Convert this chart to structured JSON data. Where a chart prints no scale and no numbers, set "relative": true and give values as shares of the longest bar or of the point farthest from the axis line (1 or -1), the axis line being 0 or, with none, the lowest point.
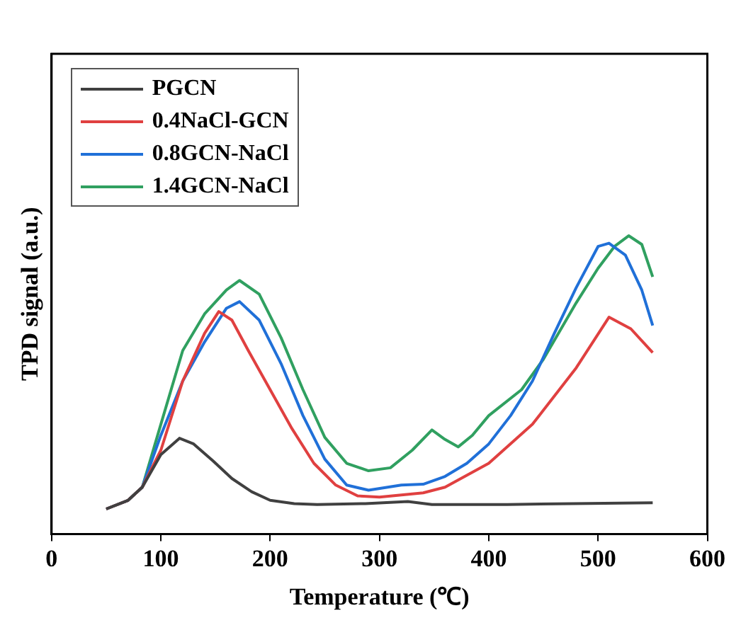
{
  "chart_data": {
    "type": "line",
    "xlabel": "Temperature (℃)",
    "ylabel": "TPD signal (a.u.)",
    "relative": true,
    "xlim": [
      0,
      600
    ],
    "xticks": [
      0,
      100,
      200,
      300,
      400,
      500,
      600
    ],
    "grid": false,
    "legend": "top left",
    "marker": "none",
    "line_style": "solid",
    "series": [
      {
        "name": "PGCN",
        "color": "#404040",
        "x": [
          50,
          70,
          83,
          100,
          117,
          130,
          148,
          165,
          183,
          200,
          222,
          243,
          287,
          326,
          348,
          417,
          550
        ],
        "values": [
          0.084,
          0.113,
          0.157,
          0.266,
          0.321,
          0.302,
          0.244,
          0.186,
          0.142,
          0.113,
          0.102,
          0.099,
          0.102,
          0.109,
          0.099,
          0.099,
          0.105
        ]
      },
      {
        "name": "0.4NaCl-GCN",
        "color": "#e04040",
        "x": [
          50,
          70,
          83,
          100,
          120,
          140,
          153,
          165,
          180,
          200,
          220,
          240,
          260,
          280,
          300,
          340,
          360,
          400,
          440,
          480,
          510,
          530,
          550
        ],
        "values": [
          0.084,
          0.113,
          0.157,
          0.281,
          0.513,
          0.673,
          0.746,
          0.717,
          0.615,
          0.484,
          0.353,
          0.237,
          0.164,
          0.128,
          0.124,
          0.138,
          0.157,
          0.237,
          0.368,
          0.557,
          0.727,
          0.688,
          0.608
        ]
      },
      {
        "name": "0.8GCN-NaCl",
        "color": "#2070d8",
        "x": [
          50,
          70,
          83,
          100,
          120,
          140,
          160,
          172,
          190,
          210,
          230,
          250,
          270,
          290,
          320,
          340,
          360,
          380,
          400,
          420,
          440,
          460,
          480,
          500,
          510,
          525,
          540,
          550
        ],
        "values": [
          0.084,
          0.113,
          0.157,
          0.331,
          0.513,
          0.644,
          0.757,
          0.779,
          0.717,
          0.571,
          0.397,
          0.251,
          0.164,
          0.147,
          0.164,
          0.167,
          0.193,
          0.237,
          0.302,
          0.397,
          0.513,
          0.673,
          0.826,
          0.964,
          0.975,
          0.935,
          0.818,
          0.699
        ]
      },
      {
        "name": "1.4GCN-NaCl",
        "color": "#30a060",
        "x": [
          50,
          70,
          83,
          100,
          120,
          140,
          160,
          172,
          190,
          210,
          230,
          250,
          270,
          290,
          310,
          330,
          348,
          360,
          372,
          385,
          400,
          430,
          450,
          480,
          500,
          515,
          528,
          540,
          550
        ],
        "values": [
          0.084,
          0.113,
          0.157,
          0.368,
          0.615,
          0.738,
          0.818,
          0.85,
          0.804,
          0.658,
          0.484,
          0.324,
          0.237,
          0.212,
          0.222,
          0.281,
          0.349,
          0.317,
          0.292,
          0.331,
          0.397,
          0.484,
          0.586,
          0.775,
          0.891,
          0.964,
          1.0,
          0.971,
          0.862
        ]
      }
    ]
  }
}
